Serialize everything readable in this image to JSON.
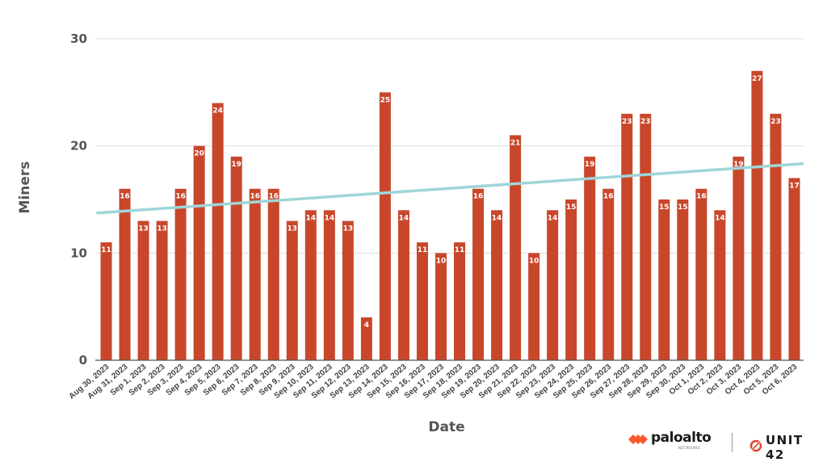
{
  "chart_data": {
    "type": "bar",
    "xlabel": "Date",
    "ylabel": "Miners",
    "ylim": [
      0,
      30
    ],
    "yticks": [
      0,
      10,
      20,
      30
    ],
    "grid": true,
    "trendline": true,
    "bar_color": "#c8472b",
    "trend_color": "#9fd6d8",
    "categories": [
      "Aug 30, 2023",
      "Aug 31, 2023",
      "Sep 1, 2023",
      "Sep 2, 2023",
      "Sep 3, 2023",
      "Sep 4, 2023",
      "Sep 5, 2023",
      "Sep 6, 2023",
      "Sep 7, 2023",
      "Sep 8, 2023",
      "Sep 9, 2023",
      "Sep 10, 2023",
      "Sep 11, 2023",
      "Sep 12, 2023",
      "Sep 13, 2023",
      "Sep 14, 2023",
      "Sep 15, 2023",
      "Sep 16, 2023",
      "Sep 17, 2023",
      "Sep 18, 2023",
      "Sep 19, 2023",
      "Sep 20, 2023",
      "Sep 21, 2023",
      "Sep 22, 2023",
      "Sep 23, 2023",
      "Sep 24, 2023",
      "Sep 25, 2023",
      "Sep 26, 2023",
      "Sep 27, 2023",
      "Sep 28, 2023",
      "Sep 29, 2023",
      "Sep 30, 2023",
      "Oct 1, 2023",
      "Oct 2, 2023",
      "Oct 3, 2023",
      "Oct 4, 2023",
      "Oct 5, 2023",
      "Oct 6, 2023"
    ],
    "values": [
      11,
      16,
      13,
      13,
      16,
      20,
      24,
      19,
      16,
      16,
      13,
      14,
      14,
      13,
      4,
      25,
      14,
      11,
      10,
      11,
      16,
      14,
      21,
      10,
      14,
      15,
      19,
      16,
      23,
      23,
      15,
      15,
      16,
      14,
      19,
      27,
      23,
      17
    ]
  },
  "logos": {
    "paloalto_word": "paloalto",
    "paloalto_sub": "NETWORKS",
    "unit42_word": "UNIT 42"
  }
}
